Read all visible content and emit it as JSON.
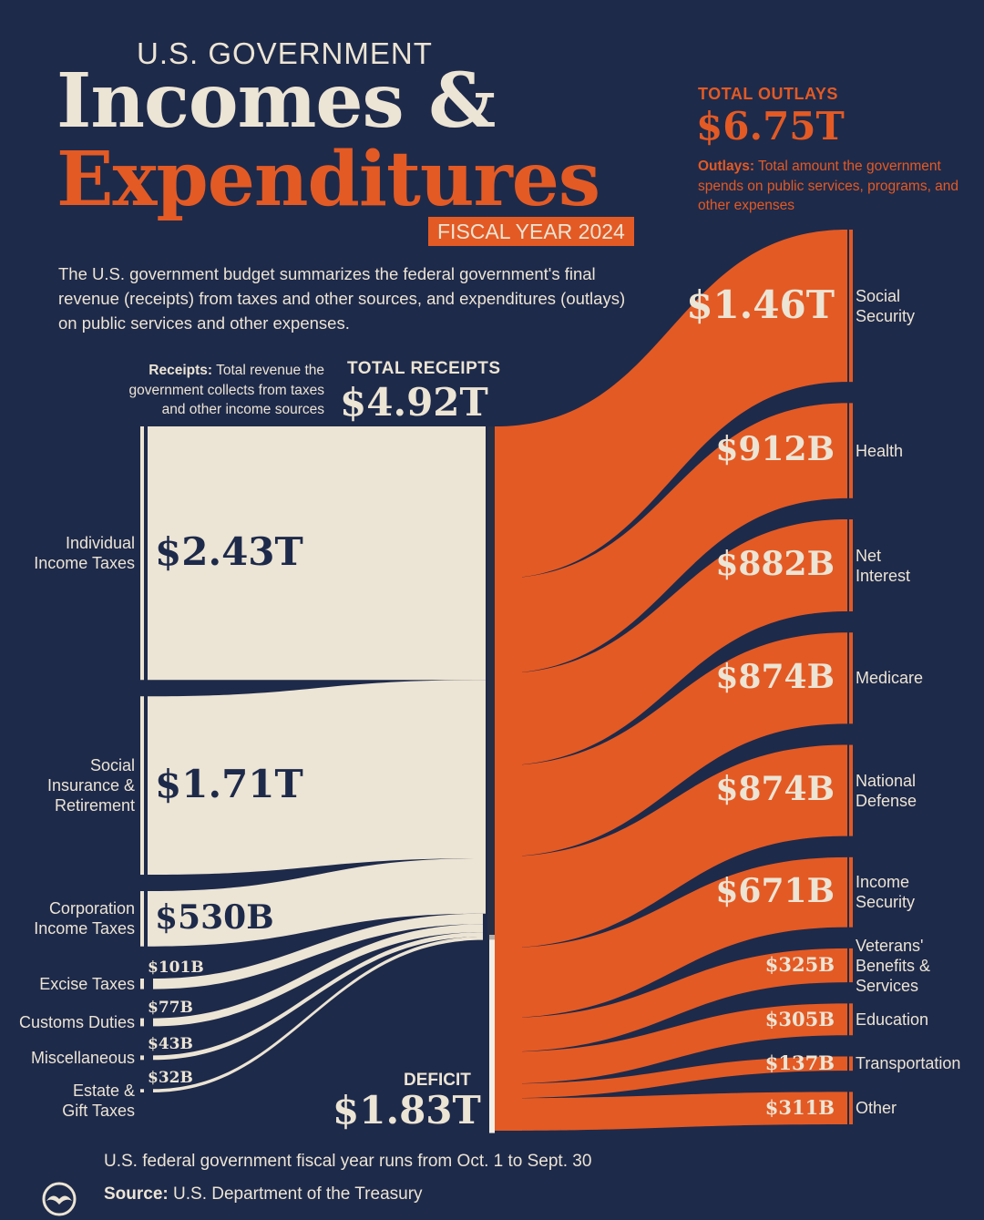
{
  "header": {
    "kicker": "U.S. GOVERNMENT",
    "title_line1": "Incomes &",
    "title_line2": "Expenditures",
    "fiscal_year": "FISCAL YEAR 2024",
    "intro": "The U.S. government budget summarizes the federal government's final revenue (receipts) from taxes and other sources, and expenditures (outlays) on public services and other expenses."
  },
  "colors": {
    "background": "#1e2a4a",
    "receipts": "#ece4d4",
    "outlays": "#e35a24",
    "text_dark": "#1e2a4a"
  },
  "outlays_header": {
    "label": "TOTAL OUTLAYS",
    "value": "$6.75T",
    "def_term": "Outlays:",
    "def_text": "Total amount the government spends on public services, programs, and other expenses"
  },
  "receipts_header": {
    "label": "TOTAL RECEIPTS",
    "value": "$4.92T",
    "def_term": "Receipts:",
    "def_text": "Total revenue the government collects from taxes and other income sources"
  },
  "deficit": {
    "label": "DEFICIT",
    "value": "$1.83T"
  },
  "chart_data": {
    "type": "sankey",
    "title": "U.S. Government Incomes & Expenditures, Fiscal Year 2024",
    "units": "USD",
    "receipts_total": 4920,
    "outlays_total": 6750,
    "deficit": 1830,
    "receipts": [
      {
        "label": "Individual Income Taxes",
        "value": 2430,
        "display": "$2.43T"
      },
      {
        "label": "Social Insurance & Retirement",
        "value": 1710,
        "display": "$1.71T"
      },
      {
        "label": "Corporation Income Taxes",
        "value": 530,
        "display": "$530B"
      },
      {
        "label": "Excise Taxes",
        "value": 101,
        "display": "$101B"
      },
      {
        "label": "Customs Duties",
        "value": 77,
        "display": "$77B"
      },
      {
        "label": "Miscellaneous",
        "value": 43,
        "display": "$43B"
      },
      {
        "label": "Estate & Gift Taxes",
        "value": 32,
        "display": "$32B"
      }
    ],
    "outlays": [
      {
        "label": "Social Security",
        "value": 1460,
        "display": "$1.46T"
      },
      {
        "label": "Health",
        "value": 912,
        "display": "$912B"
      },
      {
        "label": "Net Interest",
        "value": 882,
        "display": "$882B"
      },
      {
        "label": "Medicare",
        "value": 874,
        "display": "$874B"
      },
      {
        "label": "National Defense",
        "value": 874,
        "display": "$874B"
      },
      {
        "label": "Income Security",
        "value": 671,
        "display": "$671B"
      },
      {
        "label": "Veterans' Benefits & Services",
        "value": 325,
        "display": "$325B"
      },
      {
        "label": "Education",
        "value": 305,
        "display": "$305B"
      },
      {
        "label": "Transportation",
        "value": 137,
        "display": "$137B"
      },
      {
        "label": "Other",
        "value": 311,
        "display": "$311B"
      }
    ]
  },
  "footer": {
    "note": "U.S. federal government fiscal year runs from Oct. 1 to Sept. 30",
    "source_term": "Source:",
    "source_text": "U.S. Department of the Treasury"
  }
}
